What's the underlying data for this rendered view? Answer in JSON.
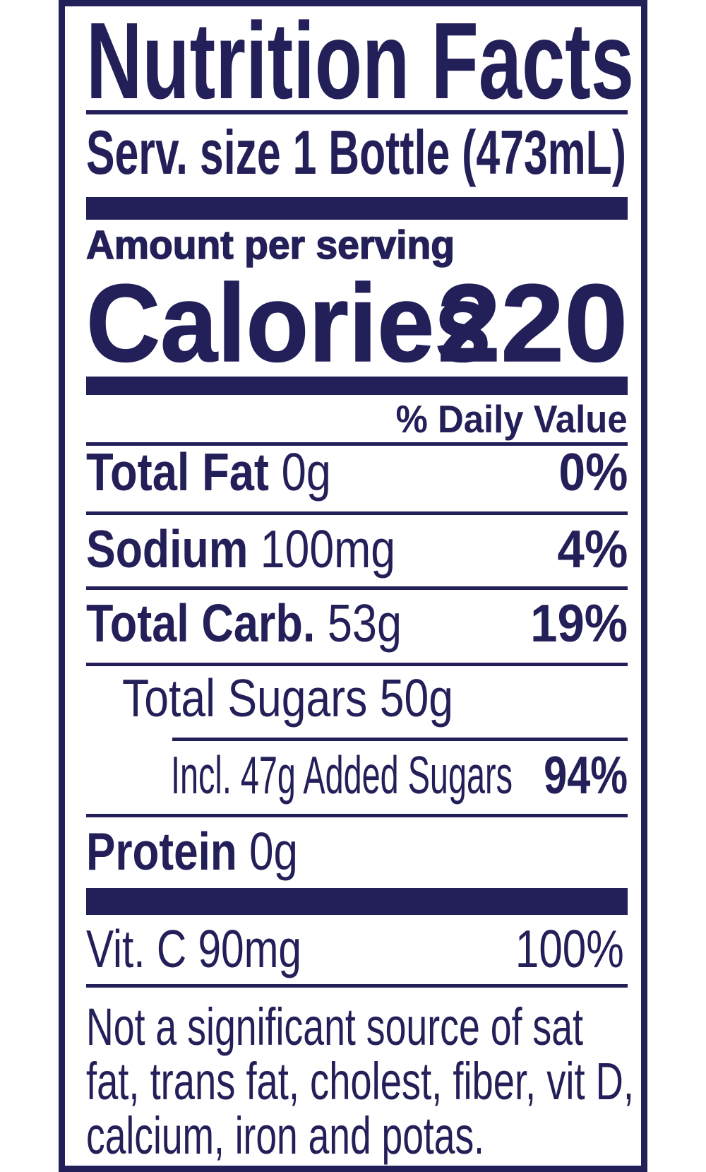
{
  "colors": {
    "ink": "#231f58",
    "background": "#ffffff"
  },
  "title": "Nutrition Facts",
  "serving_size": "Serv. size 1 Bottle (473mL)",
  "amount_per_serving": "Amount per serving",
  "calories": {
    "label": "Calories",
    "value": "220"
  },
  "daily_value_header": "% Daily Value",
  "nutrients": [
    {
      "name": "Total Fat",
      "amount": "0g",
      "dv": "0%"
    },
    {
      "name": "Sodium",
      "amount": "100mg",
      "dv": "4%"
    },
    {
      "name": "Total Carb.",
      "amount": "53g",
      "dv": "19%"
    },
    {
      "name": "Total Sugars 50g"
    },
    {
      "name": "Incl. 47g Added Sugars",
      "dv": "94%"
    },
    {
      "name": "Protein",
      "amount": "0g"
    }
  ],
  "vitamins": [
    {
      "name": "Vit. C 90mg",
      "dv": "100%"
    }
  ],
  "footnote": [
    "Not a significant source of sat",
    "fat, trans fat, cholest, fiber, vit D,",
    "calcium, iron and potas."
  ]
}
